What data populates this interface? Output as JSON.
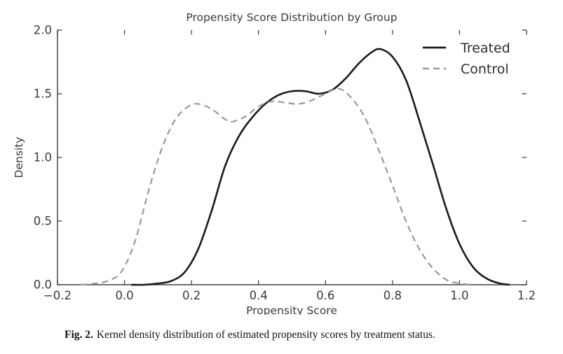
{
  "chart_data": {
    "type": "line",
    "title": "Propensity Score Distribution by Group",
    "xlabel": "Propensity Score",
    "ylabel": "Density",
    "xlim": [
      -0.2,
      1.2
    ],
    "ylim": [
      0.0,
      2.0
    ],
    "grid": false,
    "ticks_direction": "in",
    "ticks_on_all_sides": true,
    "xtick_values": [
      -0.2,
      0.0,
      0.2,
      0.4,
      0.6,
      0.8,
      1.0,
      1.2
    ],
    "xtick_labels": [
      "−0.2",
      "0.0",
      "0.2",
      "0.4",
      "0.6",
      "0.8",
      "1.0",
      "1.2"
    ],
    "ytick_values": [
      0.0,
      0.5,
      1.0,
      1.5,
      2.0
    ],
    "ytick_labels": [
      "0.0",
      "0.5",
      "1.0",
      "1.5",
      "2.0"
    ],
    "legend": {
      "position": "upper right",
      "entries": [
        {
          "label": "Treated",
          "style": "solid"
        },
        {
          "label": "Control",
          "style": "dashed"
        }
      ]
    },
    "series": [
      {
        "name": "Treated",
        "line": "solid",
        "color": "#1a1a1a",
        "width": 2.6,
        "dash": null,
        "points": [
          [
            0.02,
            0.0
          ],
          [
            0.06,
            0.0
          ],
          [
            0.1,
            0.01
          ],
          [
            0.14,
            0.03
          ],
          [
            0.18,
            0.1
          ],
          [
            0.22,
            0.28
          ],
          [
            0.26,
            0.58
          ],
          [
            0.3,
            0.93
          ],
          [
            0.34,
            1.16
          ],
          [
            0.38,
            1.31
          ],
          [
            0.42,
            1.42
          ],
          [
            0.46,
            1.49
          ],
          [
            0.5,
            1.52
          ],
          [
            0.54,
            1.52
          ],
          [
            0.58,
            1.5
          ],
          [
            0.62,
            1.53
          ],
          [
            0.66,
            1.62
          ],
          [
            0.7,
            1.74
          ],
          [
            0.74,
            1.83
          ],
          [
            0.765,
            1.85
          ],
          [
            0.8,
            1.79
          ],
          [
            0.84,
            1.61
          ],
          [
            0.88,
            1.29
          ],
          [
            0.92,
            0.95
          ],
          [
            0.96,
            0.6
          ],
          [
            1.0,
            0.32
          ],
          [
            1.04,
            0.14
          ],
          [
            1.08,
            0.05
          ],
          [
            1.12,
            0.01
          ],
          [
            1.15,
            0.0
          ]
        ]
      },
      {
        "name": "Control",
        "line": "dashed",
        "color": "#999999",
        "width": 2.2,
        "dash": [
          9,
          6
        ],
        "points": [
          [
            -0.13,
            0.0
          ],
          [
            -0.09,
            0.01
          ],
          [
            -0.05,
            0.03
          ],
          [
            -0.01,
            0.1
          ],
          [
            0.03,
            0.33
          ],
          [
            0.07,
            0.72
          ],
          [
            0.11,
            1.06
          ],
          [
            0.15,
            1.29
          ],
          [
            0.19,
            1.4
          ],
          [
            0.22,
            1.42
          ],
          [
            0.26,
            1.38
          ],
          [
            0.3,
            1.3
          ],
          [
            0.32,
            1.28
          ],
          [
            0.36,
            1.32
          ],
          [
            0.4,
            1.4
          ],
          [
            0.44,
            1.44
          ],
          [
            0.48,
            1.43
          ],
          [
            0.52,
            1.42
          ],
          [
            0.56,
            1.45
          ],
          [
            0.6,
            1.5
          ],
          [
            0.64,
            1.54
          ],
          [
            0.68,
            1.46
          ],
          [
            0.72,
            1.3
          ],
          [
            0.76,
            1.05
          ],
          [
            0.8,
            0.78
          ],
          [
            0.84,
            0.5
          ],
          [
            0.88,
            0.28
          ],
          [
            0.92,
            0.13
          ],
          [
            0.96,
            0.04
          ],
          [
            1.0,
            0.01
          ],
          [
            1.04,
            0.0
          ]
        ]
      }
    ]
  },
  "colors": {
    "axis": "#444444",
    "tick_label": "#3a3a3a",
    "title": "#3a3a3a",
    "legend_text": "#2e2e2e"
  },
  "caption": {
    "label": "Fig. 2.",
    "text": "Kernel density distribution of estimated propensity scores by treatment status."
  }
}
